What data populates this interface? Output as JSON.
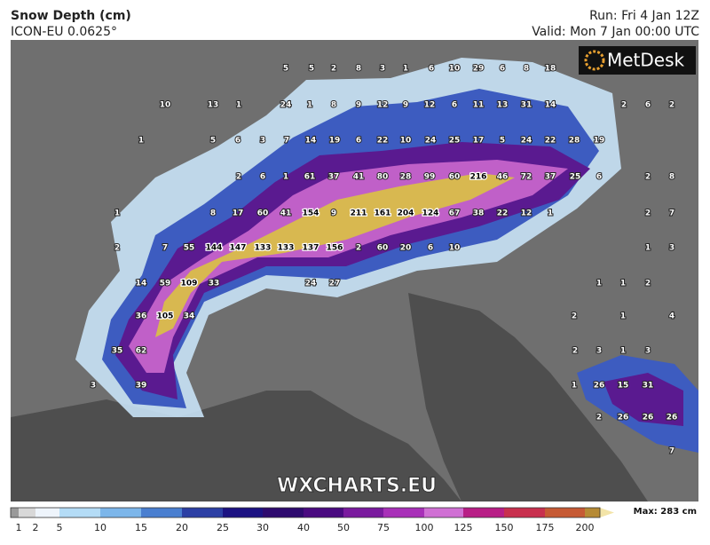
{
  "header": {
    "title": "Snow Depth (cm)",
    "model": "ICON-EU 0.0625°",
    "run": "Run: Fri 4 Jan 12Z",
    "valid": "Valid: Mon 7 Jan 00:00 UTC"
  },
  "logo": "MetDesk",
  "watermark": "WXCHARTS.EU",
  "map": {
    "labels": [
      5,
      5,
      2,
      8,
      3,
      1,
      6,
      10,
      29,
      6,
      8,
      18,
      10,
      13,
      1,
      24,
      1,
      8,
      9,
      12,
      9,
      12,
      6,
      11,
      13,
      31,
      14,
      2,
      6,
      2,
      1,
      5,
      6,
      3,
      7,
      14,
      19,
      6,
      22,
      10,
      24,
      25,
      17,
      5,
      24,
      22,
      28,
      19,
      2,
      6,
      1,
      61,
      37,
      41,
      80,
      28,
      99,
      60,
      216,
      46,
      72,
      37,
      25,
      6,
      2,
      8,
      1,
      8,
      17,
      60,
      41,
      154,
      9,
      211,
      161,
      204,
      124,
      67,
      38,
      22,
      12,
      1,
      2,
      7,
      2,
      7,
      55,
      144,
      147,
      133,
      133,
      137,
      156,
      2,
      60,
      20,
      6,
      10,
      1,
      3,
      14,
      59,
      109,
      33,
      24,
      27,
      1,
      1,
      2,
      36,
      105,
      34,
      2,
      1,
      4,
      35,
      62,
      2,
      3,
      1,
      3,
      3,
      39,
      1,
      26,
      15,
      31,
      2,
      26,
      26,
      26,
      7
    ]
  },
  "legend": {
    "ticks": [
      1,
      2,
      5,
      10,
      15,
      20,
      25,
      30,
      40,
      50,
      75,
      100,
      125,
      150,
      175,
      200
    ],
    "colors": [
      "#9a9a9a",
      "#d8d8d8",
      "#eef4fb",
      "#b4dcf6",
      "#7cb6ea",
      "#4a7fd0",
      "#2c3fa4",
      "#1c1282",
      "#2e0a6e",
      "#4a0a80",
      "#7a1a9e",
      "#a830b8",
      "#d070d4",
      "#b81e86",
      "#c8304e",
      "#c65a34",
      "#b68a34",
      "#cfae3c",
      "#f3e4a8"
    ],
    "max": "Max: 283 cm"
  }
}
